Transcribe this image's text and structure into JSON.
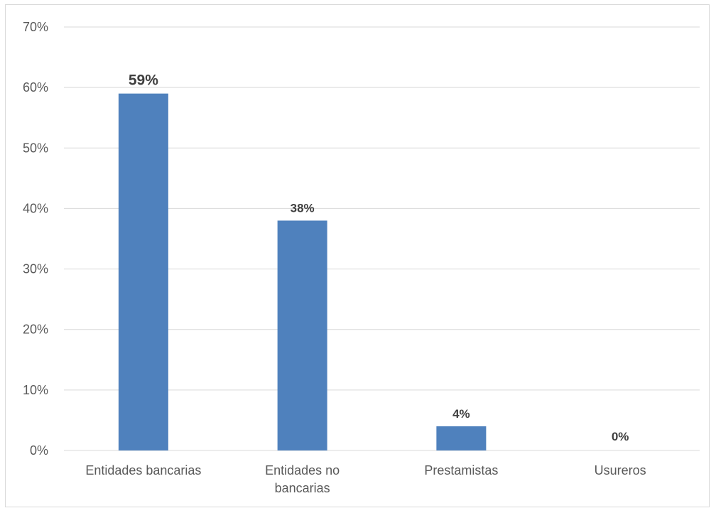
{
  "chart_data": {
    "type": "bar",
    "categories": [
      [
        "Entidades bancarias"
      ],
      [
        "Entidades no",
        "bancarias"
      ],
      [
        "Prestamistas"
      ],
      [
        "Usureros"
      ]
    ],
    "values": [
      59,
      38,
      4,
      0
    ],
    "data_labels": [
      "59%",
      "38%",
      "4%",
      "0%"
    ],
    "y_ticks": [
      "0%",
      "10%",
      "20%",
      "30%",
      "40%",
      "50%",
      "60%",
      "70%"
    ],
    "ylim": [
      0,
      70
    ],
    "title": "",
    "xlabel": "",
    "ylabel": "",
    "grid": true,
    "legend": "none",
    "bar_color": "#4f81bd",
    "grid_color": "#d9d9d9"
  }
}
